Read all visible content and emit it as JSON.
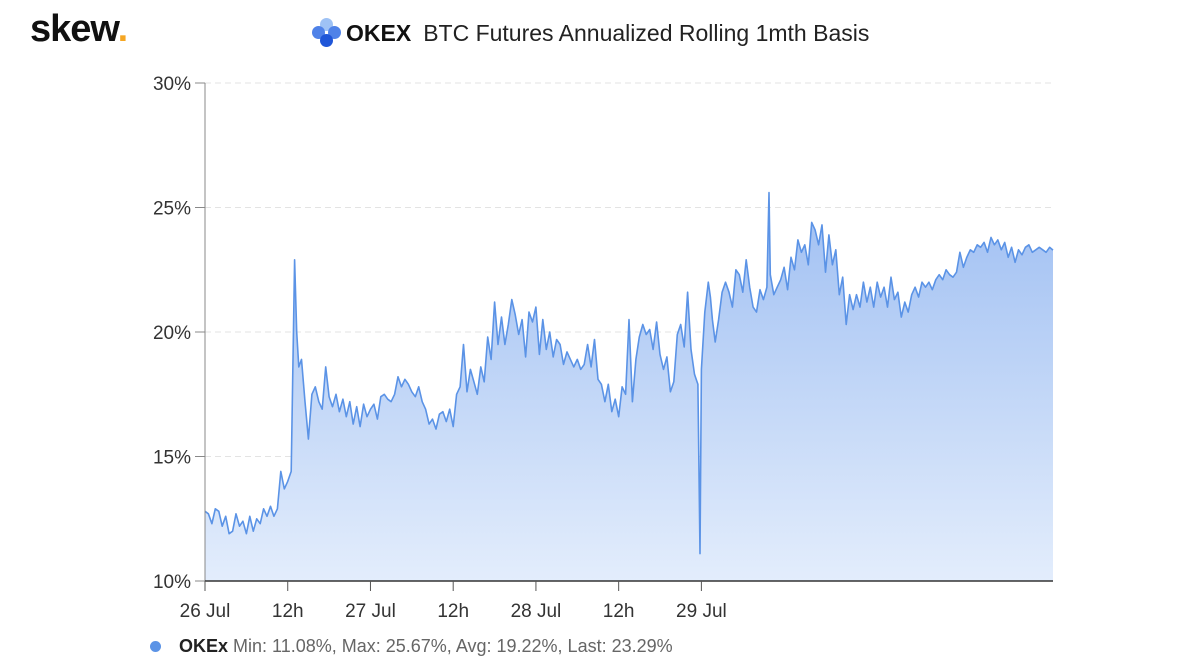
{
  "brand": {
    "name": "skew",
    "dot": "."
  },
  "header": {
    "exchange": "OKEX",
    "title": "BTC Futures Annualized Rolling 1mth Basis"
  },
  "legend": {
    "name": "OKEx",
    "stats": "Min: 11.08%, Max: 25.67%, Avg: 19.22%, Last: 23.29%"
  },
  "colors": {
    "line": "#5b93e6",
    "fill_top": "#9fbff2",
    "fill_bottom": "#e3edfc",
    "legend_marker": "#5b93e6",
    "brand_dot": "#f5a623"
  },
  "chart_data": {
    "type": "area",
    "title": "BTC Futures Annualized Rolling 1mth Basis",
    "xlabel": "",
    "ylabel": "",
    "ylim": [
      10,
      30
    ],
    "yticks": [
      "10%",
      "15%",
      "20%",
      "25%",
      "30%"
    ],
    "xticks": [
      "26 Jul",
      "12h",
      "27 Jul",
      "12h",
      "28 Jul",
      "12h",
      "29 Jul"
    ],
    "x_unit": "hours since 26 Jul 00:00",
    "grid": true,
    "series": [
      {
        "name": "OKEx",
        "points": [
          [
            0,
            12.8
          ],
          [
            0.5,
            12.7
          ],
          [
            1,
            12.3
          ],
          [
            1.5,
            12.9
          ],
          [
            2,
            12.8
          ],
          [
            2.5,
            12.2
          ],
          [
            3,
            12.6
          ],
          [
            3.5,
            11.9
          ],
          [
            4,
            12.0
          ],
          [
            4.5,
            12.7
          ],
          [
            5,
            12.2
          ],
          [
            5.5,
            12.4
          ],
          [
            6,
            11.9
          ],
          [
            6.5,
            12.6
          ],
          [
            7,
            12.0
          ],
          [
            7.5,
            12.5
          ],
          [
            8,
            12.3
          ],
          [
            8.5,
            12.9
          ],
          [
            9,
            12.6
          ],
          [
            9.5,
            13.0
          ],
          [
            10,
            12.6
          ],
          [
            10.5,
            12.9
          ],
          [
            11,
            14.4
          ],
          [
            11.5,
            13.7
          ],
          [
            12,
            14.0
          ],
          [
            12.5,
            14.4
          ],
          [
            13,
            22.9
          ],
          [
            13.3,
            20.0
          ],
          [
            13.6,
            18.6
          ],
          [
            14,
            18.9
          ],
          [
            14.5,
            17.2
          ],
          [
            15,
            15.7
          ],
          [
            15.5,
            17.5
          ],
          [
            16,
            17.8
          ],
          [
            16.5,
            17.2
          ],
          [
            17,
            16.9
          ],
          [
            17.5,
            18.6
          ],
          [
            18,
            17.4
          ],
          [
            18.5,
            17.0
          ],
          [
            19,
            17.5
          ],
          [
            19.5,
            16.8
          ],
          [
            20,
            17.3
          ],
          [
            20.5,
            16.6
          ],
          [
            21,
            17.2
          ],
          [
            21.5,
            16.3
          ],
          [
            22,
            17.0
          ],
          [
            22.5,
            16.2
          ],
          [
            23,
            17.1
          ],
          [
            23.5,
            16.6
          ],
          [
            24,
            16.9
          ],
          [
            24.5,
            17.1
          ],
          [
            25,
            16.5
          ],
          [
            25.5,
            17.4
          ],
          [
            26,
            17.5
          ],
          [
            26.5,
            17.3
          ],
          [
            27,
            17.2
          ],
          [
            27.5,
            17.5
          ],
          [
            28,
            18.2
          ],
          [
            28.5,
            17.8
          ],
          [
            29,
            18.1
          ],
          [
            29.5,
            17.9
          ],
          [
            30,
            17.6
          ],
          [
            30.5,
            17.4
          ],
          [
            31,
            17.8
          ],
          [
            31.5,
            17.2
          ],
          [
            32,
            16.9
          ],
          [
            32.5,
            16.3
          ],
          [
            33,
            16.5
          ],
          [
            33.5,
            16.1
          ],
          [
            34,
            16.7
          ],
          [
            34.5,
            16.8
          ],
          [
            35,
            16.4
          ],
          [
            35.5,
            16.9
          ],
          [
            36,
            16.2
          ],
          [
            36.5,
            17.5
          ],
          [
            37,
            17.8
          ],
          [
            37.5,
            19.5
          ],
          [
            38,
            17.6
          ],
          [
            38.5,
            18.5
          ],
          [
            39,
            18.0
          ],
          [
            39.5,
            17.5
          ],
          [
            40,
            18.6
          ],
          [
            40.5,
            18.0
          ],
          [
            41,
            19.8
          ],
          [
            41.5,
            18.9
          ],
          [
            42,
            21.2
          ],
          [
            42.5,
            19.5
          ],
          [
            43,
            20.6
          ],
          [
            43.5,
            19.5
          ],
          [
            44,
            20.3
          ],
          [
            44.5,
            21.3
          ],
          [
            45,
            20.7
          ],
          [
            45.5,
            19.9
          ],
          [
            46,
            20.5
          ],
          [
            46.5,
            19.0
          ],
          [
            47,
            20.8
          ],
          [
            47.5,
            20.4
          ],
          [
            48,
            21.0
          ],
          [
            48.5,
            19.1
          ],
          [
            49,
            20.5
          ],
          [
            49.5,
            19.3
          ],
          [
            50,
            20.0
          ],
          [
            50.5,
            19.0
          ],
          [
            51,
            19.7
          ],
          [
            51.5,
            19.5
          ],
          [
            52,
            18.7
          ],
          [
            52.5,
            19.2
          ],
          [
            53,
            18.9
          ],
          [
            53.5,
            18.6
          ],
          [
            54,
            18.9
          ],
          [
            54.5,
            18.5
          ],
          [
            55,
            18.7
          ],
          [
            55.5,
            19.5
          ],
          [
            56,
            18.6
          ],
          [
            56.5,
            19.7
          ],
          [
            57,
            18.1
          ],
          [
            57.5,
            17.9
          ],
          [
            58,
            17.2
          ],
          [
            58.5,
            17.9
          ],
          [
            59,
            16.8
          ],
          [
            59.5,
            17.3
          ],
          [
            60,
            16.6
          ],
          [
            60.5,
            17.8
          ],
          [
            61,
            17.5
          ],
          [
            61.5,
            20.5
          ],
          [
            62,
            17.2
          ],
          [
            62.5,
            18.9
          ],
          [
            63,
            19.8
          ],
          [
            63.5,
            20.3
          ],
          [
            64,
            19.9
          ],
          [
            64.5,
            20.1
          ],
          [
            65,
            19.3
          ],
          [
            65.5,
            20.4
          ],
          [
            66,
            19.1
          ],
          [
            66.5,
            18.5
          ],
          [
            67,
            19.0
          ],
          [
            67.5,
            17.6
          ],
          [
            68,
            18.0
          ],
          [
            68.5,
            19.9
          ],
          [
            69,
            20.3
          ],
          [
            69.5,
            19.4
          ],
          [
            70,
            21.6
          ],
          [
            70.5,
            19.3
          ],
          [
            71,
            18.3
          ],
          [
            71.5,
            17.9
          ],
          [
            71.8,
            11.1
          ],
          [
            72,
            18.5
          ],
          [
            72.5,
            20.8
          ],
          [
            73,
            22.0
          ],
          [
            73.3,
            21.4
          ],
          [
            73.6,
            20.5
          ],
          [
            74,
            19.6
          ],
          [
            74.5,
            20.5
          ],
          [
            75,
            21.6
          ],
          [
            75.5,
            22.0
          ],
          [
            76,
            21.6
          ],
          [
            76.5,
            21.0
          ],
          [
            77,
            22.5
          ],
          [
            77.5,
            22.3
          ],
          [
            78,
            21.6
          ],
          [
            78.5,
            22.9
          ],
          [
            79,
            21.8
          ],
          [
            79.5,
            21.0
          ],
          [
            80,
            20.8
          ],
          [
            80.5,
            21.7
          ],
          [
            81,
            21.3
          ],
          [
            81.5,
            21.8
          ],
          [
            81.8,
            25.6
          ],
          [
            82,
            22.3
          ],
          [
            82.5,
            21.5
          ],
          [
            83,
            21.8
          ],
          [
            83.5,
            22.1
          ],
          [
            84,
            22.6
          ],
          [
            84.5,
            21.7
          ],
          [
            85,
            23.0
          ],
          [
            85.5,
            22.5
          ],
          [
            86,
            23.7
          ],
          [
            86.5,
            23.2
          ],
          [
            87,
            23.5
          ],
          [
            87.5,
            22.7
          ],
          [
            88,
            24.4
          ],
          [
            88.5,
            24.1
          ],
          [
            89,
            23.5
          ],
          [
            89.5,
            24.3
          ],
          [
            90,
            22.4
          ],
          [
            90.5,
            23.9
          ],
          [
            91,
            22.7
          ],
          [
            91.5,
            23.3
          ],
          [
            92,
            21.5
          ],
          [
            92.5,
            22.2
          ],
          [
            93,
            20.3
          ],
          [
            93.5,
            21.5
          ],
          [
            94,
            20.9
          ],
          [
            94.5,
            21.5
          ],
          [
            95,
            21.0
          ],
          [
            95.5,
            22.0
          ],
          [
            96,
            21.2
          ],
          [
            96.5,
            21.8
          ],
          [
            97,
            21.0
          ],
          [
            97.5,
            22.0
          ],
          [
            98,
            21.4
          ],
          [
            98.5,
            21.8
          ],
          [
            99,
            21.0
          ],
          [
            99.5,
            22.2
          ],
          [
            100,
            21.3
          ],
          [
            100.5,
            21.6
          ],
          [
            101,
            20.6
          ],
          [
            101.5,
            21.2
          ],
          [
            102,
            20.8
          ],
          [
            102.5,
            21.5
          ],
          [
            103,
            21.8
          ],
          [
            103.5,
            21.4
          ],
          [
            104,
            22.0
          ],
          [
            104.5,
            21.8
          ],
          [
            105,
            22.0
          ],
          [
            105.5,
            21.7
          ],
          [
            106,
            22.1
          ],
          [
            106.5,
            22.3
          ],
          [
            107,
            22.1
          ],
          [
            107.5,
            22.5
          ],
          [
            108,
            22.3
          ],
          [
            108.5,
            22.2
          ],
          [
            109,
            22.4
          ],
          [
            109.5,
            23.2
          ],
          [
            110,
            22.6
          ],
          [
            110.5,
            23.0
          ],
          [
            111,
            23.3
          ],
          [
            111.5,
            23.2
          ],
          [
            112,
            23.5
          ],
          [
            112.5,
            23.4
          ],
          [
            113,
            23.6
          ],
          [
            113.5,
            23.2
          ],
          [
            114,
            23.8
          ],
          [
            114.5,
            23.5
          ],
          [
            115,
            23.7
          ],
          [
            115.5,
            23.3
          ],
          [
            116,
            23.6
          ],
          [
            116.5,
            23.0
          ],
          [
            117,
            23.4
          ],
          [
            117.5,
            22.8
          ],
          [
            118,
            23.3
          ],
          [
            118.5,
            23.1
          ],
          [
            119,
            23.4
          ],
          [
            119.5,
            23.5
          ],
          [
            120,
            23.2
          ],
          [
            120.5,
            23.3
          ],
          [
            121,
            23.4
          ],
          [
            121.5,
            23.3
          ],
          [
            122,
            23.2
          ],
          [
            122.5,
            23.4
          ],
          [
            123,
            23.29
          ]
        ]
      }
    ]
  }
}
